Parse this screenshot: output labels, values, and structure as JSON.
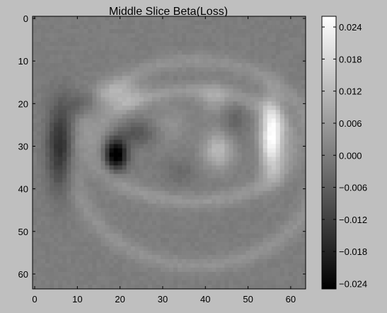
{
  "chart_data": {
    "type": "heatmap",
    "title": "Middle Slice Beta(Loss)",
    "xlabel": "",
    "ylabel": "",
    "colormap": "gray",
    "x_ticks": [
      0,
      10,
      20,
      30,
      40,
      50,
      60
    ],
    "x_range": [
      -0.5,
      63.5
    ],
    "y_ticks": [
      0,
      10,
      20,
      30,
      40,
      50,
      60
    ],
    "y_range": [
      -0.5,
      63.5
    ],
    "y_inverted": true,
    "grid_shape": [
      64,
      64
    ],
    "colorbar": {
      "min": -0.025,
      "max": 0.026,
      "ticks": [
        0.024,
        0.018,
        0.012,
        0.006,
        0.0,
        -0.006,
        -0.012,
        -0.018,
        -0.024
      ],
      "tick_labels": [
        "0.024",
        "0.018",
        "0.012",
        "0.006",
        "0.000",
        "−0.006",
        "−0.012",
        "−0.018",
        "−0.024"
      ]
    },
    "features": [
      {
        "description": "outer curved band (approximate)",
        "cx": 38,
        "cy": 34,
        "rx": 29,
        "ry": 24,
        "value": 0.004
      },
      {
        "description": "inner ring (approximate)",
        "cx": 37,
        "cy": 30,
        "rx": 23,
        "ry": 13,
        "value": 0.005
      },
      {
        "description": "bright crescent",
        "x": 55,
        "y": 28,
        "value": 0.025
      },
      {
        "description": "bright blob",
        "x": 43,
        "y": 31,
        "value": 0.012
      },
      {
        "description": "bright blob",
        "x": 20,
        "y": 18,
        "value": 0.009
      },
      {
        "description": "dark core",
        "x": 19,
        "y": 32,
        "value": -0.025
      },
      {
        "description": "dark arc",
        "x": 6,
        "y": 30,
        "value": -0.015
      }
    ]
  }
}
